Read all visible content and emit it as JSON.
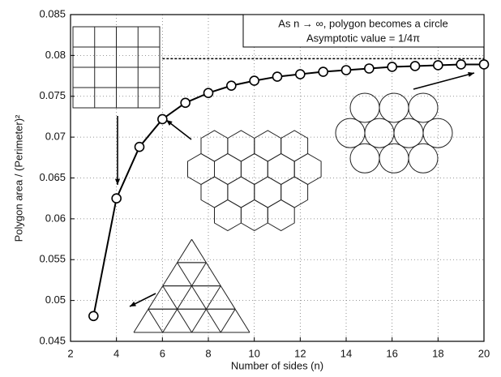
{
  "chart_data": {
    "type": "line",
    "annotation": [
      "As n → ∞, polygon becomes a circle",
      "Asymptotic value = 1/4π"
    ],
    "xlabel": "Number of sides (n)",
    "ylabel": "Polygon area / (Perimeter)²",
    "x": [
      3,
      4,
      5,
      6,
      7,
      8,
      9,
      10,
      11,
      12,
      13,
      14,
      15,
      16,
      17,
      18,
      19,
      20
    ],
    "series": [
      {
        "color": "#000000",
        "values": [
          0.0481,
          0.0625,
          0.0688,
          0.0722,
          0.0742,
          0.0754,
          0.0763,
          0.0769,
          0.0774,
          0.0777,
          0.078,
          0.0782,
          0.0784,
          0.0786,
          0.0787,
          0.0788,
          0.0789,
          0.0789
        ]
      }
    ],
    "asymptote": {
      "y": 0.0796,
      "x": [
        6,
        20
      ]
    },
    "xlim": [
      2,
      20
    ],
    "xticks": [
      2,
      4,
      6,
      8,
      10,
      12,
      14,
      16,
      18,
      20
    ],
    "ylim": [
      0.045,
      0.085
    ],
    "yticks": [
      0.045,
      0.05,
      0.055,
      0.06,
      0.065,
      0.07,
      0.075,
      0.08,
      0.085
    ],
    "grid": true
  }
}
